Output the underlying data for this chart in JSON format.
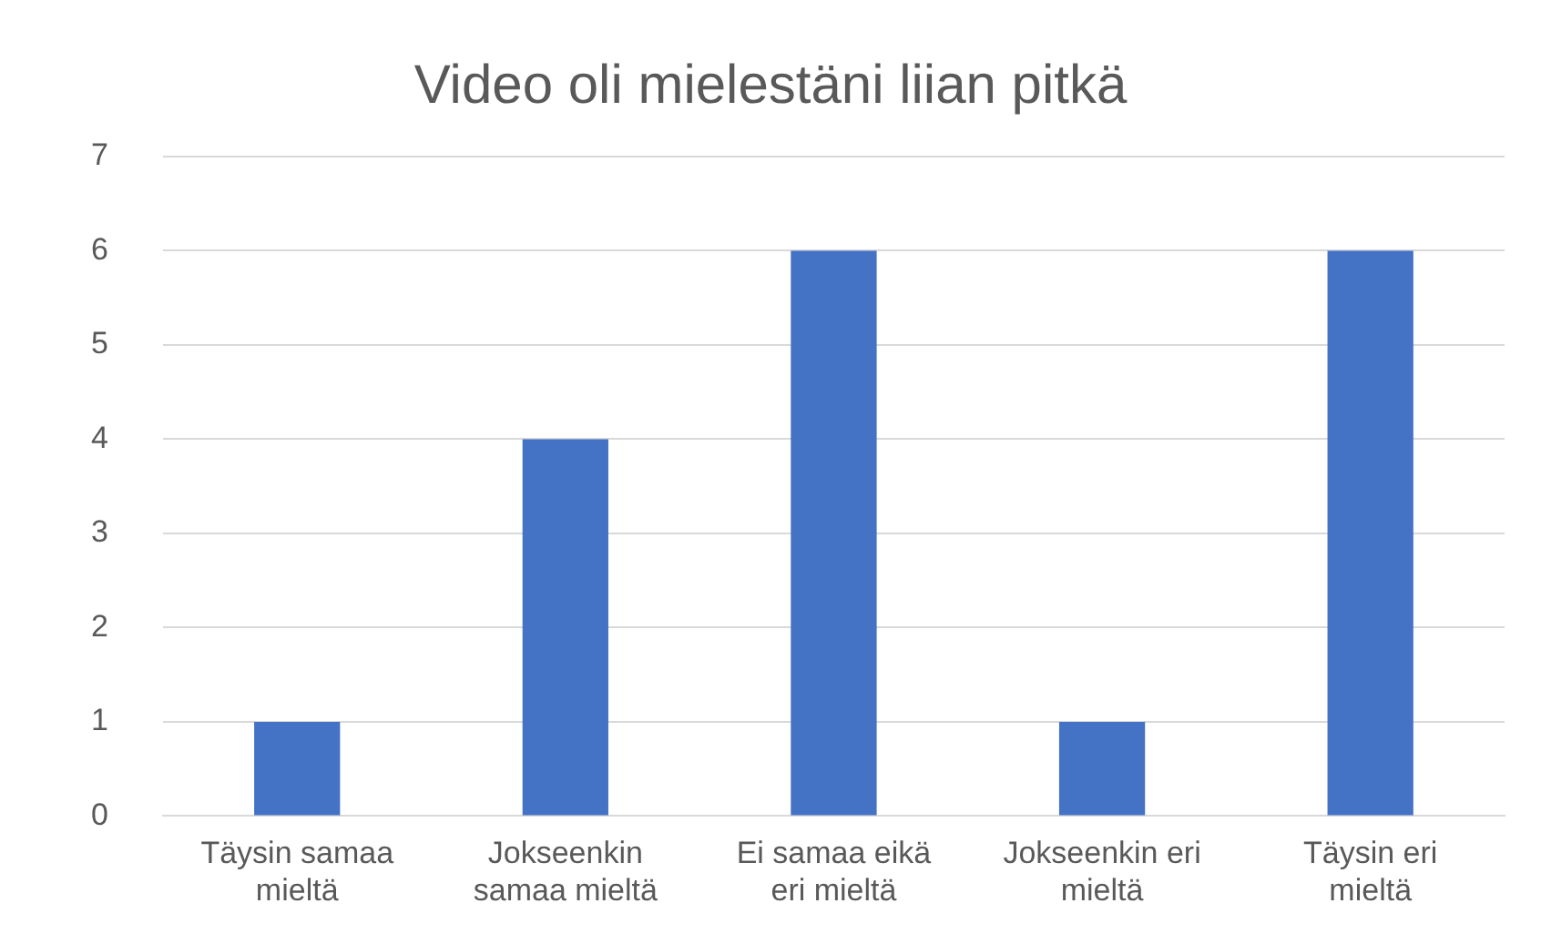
{
  "chart_data": {
    "type": "bar",
    "title": "Video oli mielestäni liian pitkä",
    "categories": [
      "Täysin samaa mieltä",
      "Jokseenkin samaa mieltä",
      "Ei samaa eikä eri mieltä",
      "Jokseenkin eri mieltä",
      "Täysin eri mieltä"
    ],
    "values": [
      1,
      4,
      6,
      1,
      6
    ],
    "color": "#4472c4",
    "ylim": [
      0,
      7
    ],
    "yticks": [
      0,
      1,
      2,
      3,
      4,
      5,
      6,
      7
    ],
    "grid": "y",
    "legend": false
  }
}
